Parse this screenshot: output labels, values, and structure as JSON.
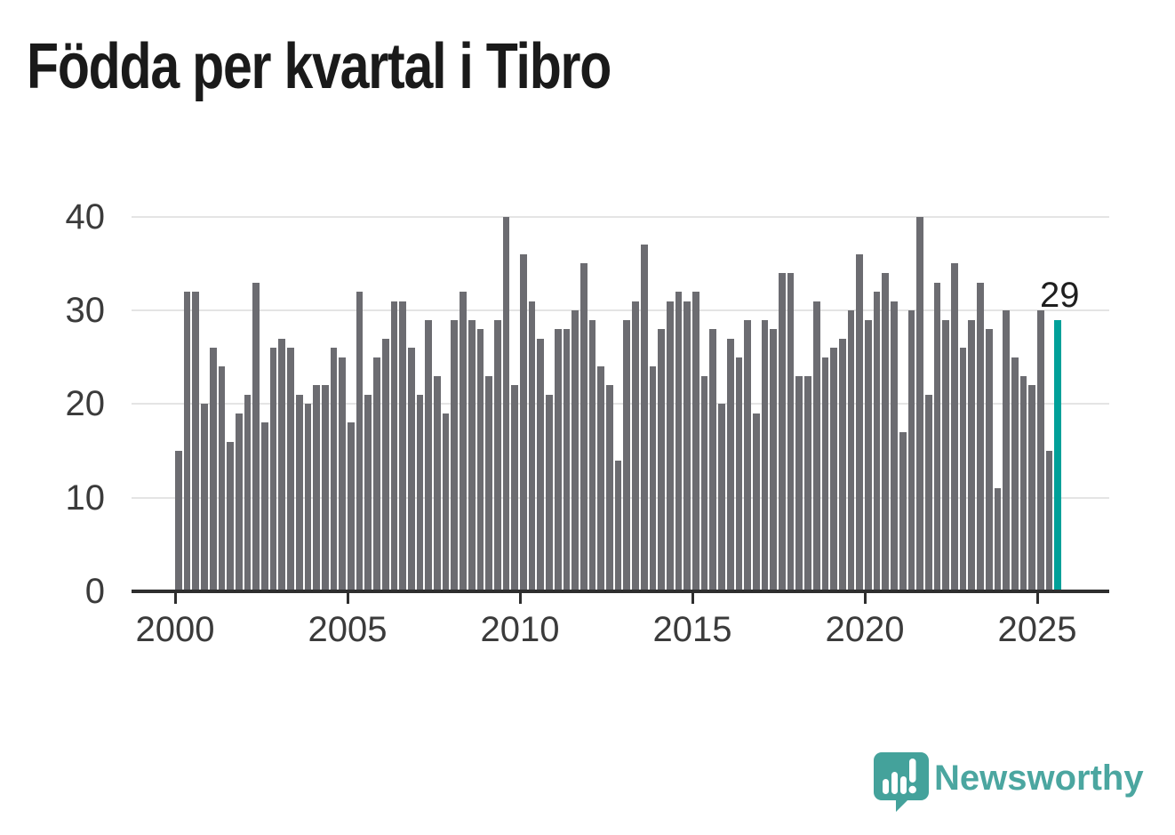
{
  "title": "Födda per kvartal i Tibro",
  "chart_data": {
    "type": "bar",
    "title": "Födda per kvartal i Tibro",
    "x_tick_labels": [
      "2000",
      "2005",
      "2010",
      "2015",
      "2020",
      "2025"
    ],
    "y_ticks": [
      0,
      10,
      20,
      30,
      40
    ],
    "ylim": [
      0,
      40
    ],
    "grid": "horizontal",
    "series_by_year": [
      {
        "year": "2000",
        "values": [
          15,
          32,
          32,
          20
        ]
      },
      {
        "year": "2001",
        "values": [
          26,
          24,
          16,
          19
        ]
      },
      {
        "year": "2002",
        "values": [
          21,
          33,
          18,
          26
        ]
      },
      {
        "year": "2003",
        "values": [
          27,
          26,
          21,
          20
        ]
      },
      {
        "year": "2004",
        "values": [
          22,
          22,
          26,
          25
        ]
      },
      {
        "year": "2005",
        "values": [
          18,
          32,
          21,
          25
        ]
      },
      {
        "year": "2006",
        "values": [
          27,
          31,
          31,
          26
        ]
      },
      {
        "year": "2007",
        "values": [
          21,
          29,
          23,
          19
        ]
      },
      {
        "year": "2008",
        "values": [
          29,
          32,
          29,
          28
        ]
      },
      {
        "year": "2009",
        "values": [
          23,
          29,
          40,
          22
        ]
      },
      {
        "year": "2010",
        "values": [
          36,
          31,
          27,
          21
        ]
      },
      {
        "year": "2011",
        "values": [
          28,
          28,
          30,
          35
        ]
      },
      {
        "year": "2012",
        "values": [
          29,
          24,
          22,
          14
        ]
      },
      {
        "year": "2013",
        "values": [
          29,
          31,
          37,
          24
        ]
      },
      {
        "year": "2014",
        "values": [
          28,
          31,
          32,
          31
        ]
      },
      {
        "year": "2015",
        "values": [
          32,
          23,
          28,
          20
        ]
      },
      {
        "year": "2016",
        "values": [
          27,
          25,
          29,
          19
        ]
      },
      {
        "year": "2017",
        "values": [
          29,
          28,
          34,
          34
        ]
      },
      {
        "year": "2018",
        "values": [
          23,
          23,
          31,
          25
        ]
      },
      {
        "year": "2019",
        "values": [
          26,
          27,
          30,
          36
        ]
      },
      {
        "year": "2020",
        "values": [
          29,
          32,
          34,
          31
        ]
      },
      {
        "year": "2021",
        "values": [
          17,
          30,
          40,
          21
        ]
      },
      {
        "year": "2022",
        "values": [
          33,
          29,
          35,
          26
        ]
      },
      {
        "year": "2023",
        "values": [
          29,
          33,
          28,
          11
        ]
      },
      {
        "year": "2024",
        "values": [
          30,
          25,
          23,
          22
        ]
      },
      {
        "year": "2025",
        "values": [
          30,
          15,
          29
        ]
      }
    ],
    "highlight": {
      "quarter": "2025 Q3",
      "value": 29,
      "label": "29"
    },
    "colors": {
      "bar": "#6c6c71",
      "highlight": "#00a099",
      "gridline": "#e4e4e4",
      "axis": "#2e2e2e",
      "tick_label": "#3b3b3b",
      "annotation": "#1f1f1f"
    }
  },
  "branding": {
    "logo_text": "Newsworthy",
    "logo_bubble_color": "#44a29b",
    "logo_text_color": "#4ba6a0"
  }
}
